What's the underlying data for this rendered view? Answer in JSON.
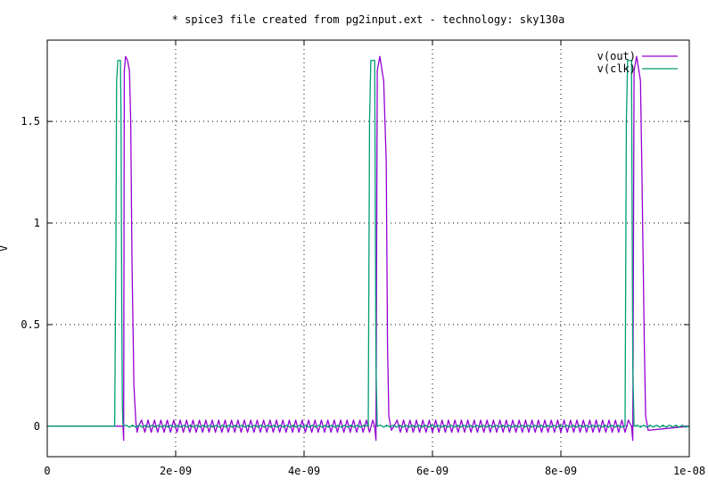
{
  "chart_data": {
    "type": "line",
    "title": "* spice3 file created from pg2input.ext - technology: sky130a",
    "xlabel": "",
    "ylabel": "V",
    "xlim": [
      0,
      1e-08
    ],
    "ylim": [
      -0.15,
      1.9
    ],
    "grid": true,
    "legend_position": "top-right",
    "x_ticks": [
      {
        "value": 0,
        "label": "0"
      },
      {
        "value": 2e-09,
        "label": "2e-09"
      },
      {
        "value": 4e-09,
        "label": "4e-09"
      },
      {
        "value": 6e-09,
        "label": "6e-09"
      },
      {
        "value": 8e-09,
        "label": "8e-09"
      },
      {
        "value": 1e-08,
        "label": "1e-08"
      }
    ],
    "y_ticks": [
      {
        "value": 0,
        "label": "0"
      },
      {
        "value": 0.5,
        "label": "0.5"
      },
      {
        "value": 1,
        "label": "1"
      },
      {
        "value": 1.5,
        "label": "1.5"
      }
    ],
    "series": [
      {
        "name": "v(out)",
        "color": "#9400d3",
        "x": [
          0,
          1.18e-09,
          1.19e-09,
          1.2e-09,
          1.22e-09,
          1.25e-09,
          1.28e-09,
          1.3e-09,
          1.32e-09,
          1.35e-09,
          1.38e-09,
          1.4e-09,
          1.42e-09,
          5.1e-09,
          5.12e-09,
          5.14e-09,
          5.18e-09,
          5.2e-09,
          5.24e-09,
          5.28e-09,
          5.3e-09,
          5.32e-09,
          5.36e-09,
          5.4e-09,
          9.1e-09,
          9.12e-09,
          9.14e-09,
          9.18e-09,
          9.2e-09,
          9.24e-09,
          9.26e-09,
          9.3e-09,
          9.32e-09,
          9.36e-09,
          1e-08
        ],
        "y": [
          0,
          0,
          -0.07,
          1.75,
          1.82,
          1.8,
          1.75,
          1.5,
          0.8,
          0.2,
          0.02,
          -0.03,
          0,
          0,
          -0.07,
          1.75,
          1.82,
          1.78,
          1.7,
          1.3,
          0.4,
          0.05,
          -0.02,
          0,
          0,
          -0.07,
          1.75,
          1.82,
          1.78,
          1.7,
          1.3,
          0.4,
          0.05,
          -0.02,
          0
        ],
        "ripple_amplitude": 0.03
      },
      {
        "name": "v(clk)",
        "color": "#009e73",
        "x": [
          0,
          1.05e-09,
          1.07e-09,
          1.08e-09,
          1.1e-09,
          1.14e-09,
          1.15e-09,
          1.16e-09,
          1.17e-09,
          1.18e-09,
          5e-09,
          5.02e-09,
          5.04e-09,
          5.06e-09,
          5.1e-09,
          5.12e-09,
          5.14e-09,
          9e-09,
          9.02e-09,
          9.04e-09,
          9.06e-09,
          9.1e-09,
          9.12e-09,
          9.14e-09,
          1e-08
        ],
        "y": [
          0,
          0,
          0.9,
          1.7,
          1.8,
          1.8,
          1.5,
          0.6,
          0.1,
          0,
          0,
          1.5,
          1.8,
          1.8,
          1.8,
          0.3,
          0,
          0,
          1.5,
          1.8,
          1.8,
          1.8,
          0.3,
          0,
          0
        ],
        "ripple_amplitude": 0.008
      }
    ]
  }
}
